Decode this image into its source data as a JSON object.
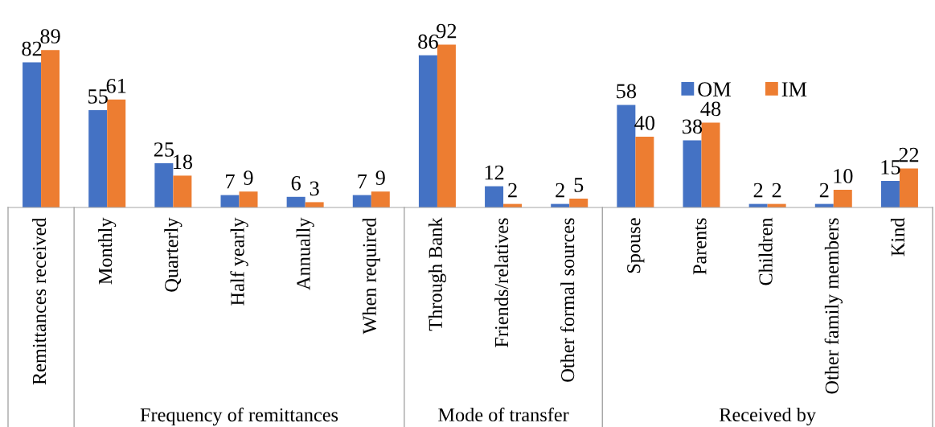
{
  "chart_data": {
    "type": "bar",
    "categories": [
      "Remittances received",
      "Monthly",
      "Quarterly",
      "Half yearly",
      "Annually",
      "When required",
      "Through Bank",
      "Friends/relatives",
      "Other formal sources",
      "Spouse",
      "Parents",
      "Children",
      "Other family members",
      "Kind"
    ],
    "series": [
      {
        "name": "OM",
        "color": "#4472c4",
        "values": [
          82,
          55,
          25,
          7,
          6,
          7,
          86,
          12,
          2,
          58,
          38,
          2,
          2,
          15
        ]
      },
      {
        "name": "IM",
        "color": "#ed7d31",
        "values": [
          89,
          61,
          18,
          9,
          3,
          9,
          92,
          2,
          5,
          40,
          48,
          2,
          10,
          22
        ]
      }
    ],
    "annotations": [
      "Frequency of remittances",
      "Mode of transfer",
      "Received by"
    ],
    "tick_labels": "x",
    "data_labels": true,
    "legend": "top right",
    "grid": false
  }
}
